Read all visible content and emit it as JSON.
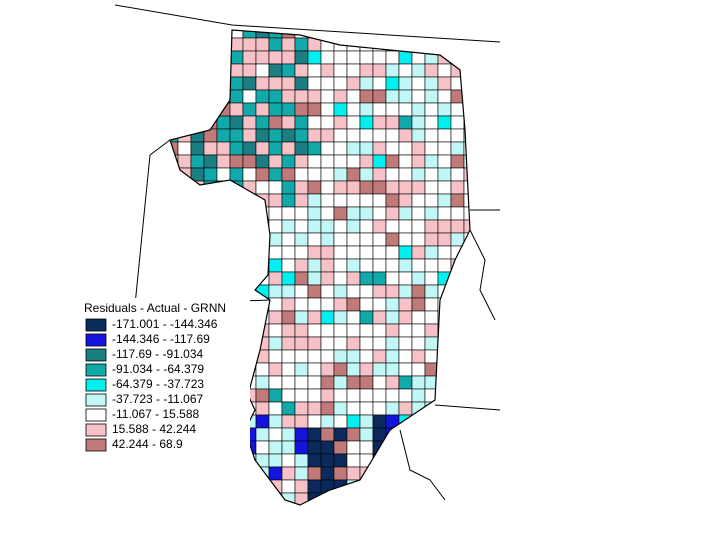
{
  "legend": {
    "title": "Residuals - Actual - GRNN",
    "items": [
      {
        "label": "-171.001 - -144.346",
        "color": "#0b2a5c"
      },
      {
        "label": "-144.346 - -117.69",
        "color": "#1414dc"
      },
      {
        "label": "-117.69 - -91.034",
        "color": "#1a7e82"
      },
      {
        "label": "-91.034 - -64.379",
        "color": "#12a9ab"
      },
      {
        "label": "-64.379 - -37.723",
        "color": "#00f0f0"
      },
      {
        "label": "-37.723 - -11.067",
        "color": "#c2f7f7"
      },
      {
        "label": "-11.067 - 15.588",
        "color": "#ffffff"
      },
      {
        "label": "15.588 - 42.244",
        "color": "#f6c2c8"
      },
      {
        "label": "42.244 - 68.9",
        "color": "#c07a7a"
      }
    ]
  }
}
